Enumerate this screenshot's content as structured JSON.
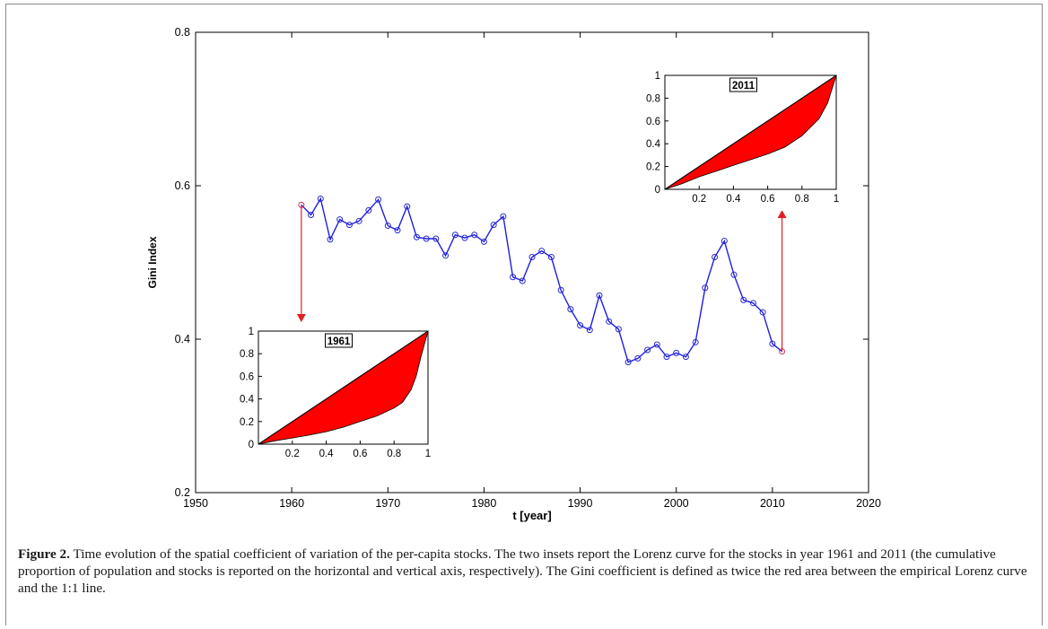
{
  "figure": {
    "caption_label": "Figure 2.",
    "caption_text": " Time evolution of the spatial coefficient of variation of the per-capita stocks. The two insets report the Lorenz curve for the stocks in year 1961 and 2011 (the cumulative proportion of population and stocks is reported on the horizontal and vertical axis, respectively). The Gini coefficient is defined as twice the red area between the empirical Lorenz curve and the 1:1 line."
  },
  "chart_data": [
    {
      "type": "line",
      "title": "",
      "xlabel": "t [year]",
      "ylabel": "Gini Index",
      "xlim": [
        1950,
        2020
      ],
      "ylim": [
        0.2,
        0.8
      ],
      "xticks": [
        1950,
        1960,
        1970,
        1980,
        1990,
        2000,
        2010,
        2020
      ],
      "yticks": [
        0.2,
        0.4,
        0.6,
        0.8
      ],
      "grid": false,
      "line_color": "#1f1fe0",
      "marker_color": "#2b2bcf",
      "highlight_color": "#cc3366",
      "arrow_color": "#e02020",
      "x": [
        1961,
        1962,
        1963,
        1964,
        1965,
        1966,
        1967,
        1968,
        1969,
        1970,
        1971,
        1972,
        1973,
        1974,
        1975,
        1976,
        1977,
        1978,
        1979,
        1980,
        1981,
        1982,
        1983,
        1984,
        1985,
        1986,
        1987,
        1988,
        1989,
        1990,
        1991,
        1992,
        1993,
        1994,
        1995,
        1996,
        1997,
        1998,
        1999,
        2000,
        2001,
        2002,
        2003,
        2004,
        2005,
        2006,
        2007,
        2008,
        2009,
        2010,
        2011
      ],
      "values": [
        0.575,
        0.562,
        0.583,
        0.53,
        0.556,
        0.549,
        0.554,
        0.568,
        0.582,
        0.548,
        0.542,
        0.573,
        0.533,
        0.531,
        0.531,
        0.509,
        0.536,
        0.532,
        0.536,
        0.527,
        0.549,
        0.56,
        0.481,
        0.476,
        0.507,
        0.515,
        0.507,
        0.464,
        0.439,
        0.418,
        0.412,
        0.457,
        0.423,
        0.413,
        0.37,
        0.375,
        0.386,
        0.393,
        0.377,
        0.382,
        0.377,
        0.396,
        0.467,
        0.507,
        0.528,
        0.484,
        0.451,
        0.447,
        0.435,
        0.394,
        0.384
      ],
      "highlighted_points": [
        1961,
        2011
      ]
    },
    {
      "type": "area",
      "inset_of": "main",
      "label": "1961",
      "xlim": [
        0,
        1
      ],
      "ylim": [
        0,
        1
      ],
      "xticks": [
        0.2,
        0.4,
        0.6,
        0.8,
        1
      ],
      "yticks": [
        0,
        0.2,
        0.4,
        0.6,
        0.8,
        1
      ],
      "fill_color": "#ff0000",
      "x": [
        0,
        0.1,
        0.2,
        0.3,
        0.4,
        0.5,
        0.6,
        0.7,
        0.8,
        0.85,
        0.9,
        0.93,
        0.96,
        1.0
      ],
      "values": [
        0,
        0.03,
        0.055,
        0.08,
        0.11,
        0.15,
        0.2,
        0.25,
        0.32,
        0.37,
        0.48,
        0.6,
        0.78,
        1.0
      ]
    },
    {
      "type": "area",
      "inset_of": "main",
      "label": "2011",
      "xlim": [
        0,
        1
      ],
      "ylim": [
        0,
        1
      ],
      "xticks": [
        0.2,
        0.4,
        0.6,
        0.8,
        1
      ],
      "yticks": [
        0,
        0.2,
        0.4,
        0.6,
        0.8,
        1
      ],
      "fill_color": "#ff0000",
      "x": [
        0,
        0.1,
        0.2,
        0.3,
        0.4,
        0.5,
        0.6,
        0.7,
        0.8,
        0.9,
        0.95,
        1.0
      ],
      "values": [
        0,
        0.05,
        0.11,
        0.16,
        0.21,
        0.26,
        0.31,
        0.37,
        0.47,
        0.62,
        0.76,
        1.0
      ]
    }
  ]
}
